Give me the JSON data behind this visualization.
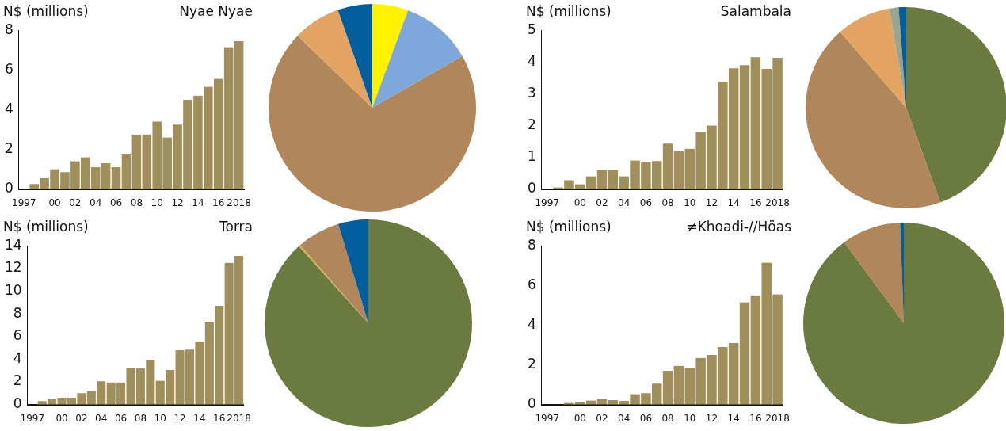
{
  "chart_data": [
    {
      "type": "bar",
      "title": "Nyae Nyae",
      "ylabel": "N$ (millions)",
      "categories": [
        "1997",
        null,
        null,
        "00",
        null,
        "02",
        null,
        "04",
        null,
        "06",
        null,
        "08",
        null,
        "10",
        null,
        "12",
        null,
        "14",
        null,
        "16",
        null,
        "2018"
      ],
      "values": [
        0,
        0.25,
        0.55,
        1.0,
        0.85,
        1.4,
        1.6,
        1.1,
        1.3,
        1.1,
        1.75,
        2.75,
        2.75,
        3.4,
        2.6,
        3.25,
        4.5,
        4.7,
        5.15,
        5.55,
        7.15,
        7.45
      ],
      "color": "#a08f5a",
      "ylim": [
        0,
        8
      ],
      "yticks": [
        0,
        2,
        4,
        6,
        8
      ]
    },
    {
      "type": "pie",
      "categories": [
        null,
        null,
        null,
        null,
        null
      ],
      "values": [
        5.6,
        11.1,
        70.5,
        7.4,
        5.4
      ],
      "colors": [
        "#fff200",
        "#7ea7db",
        "#b0865a",
        "#e3a463",
        "#035c9b"
      ]
    },
    {
      "type": "bar",
      "title": "Salambala",
      "ylabel": "N$ (millions)",
      "categories": [
        "1997",
        null,
        null,
        "00",
        null,
        "02",
        null,
        "04",
        null,
        "06",
        null,
        "08",
        null,
        "10",
        null,
        "12",
        null,
        "14",
        null,
        "16",
        null,
        "2018"
      ],
      "values": [
        0,
        0.05,
        0.28,
        0.15,
        0.4,
        0.6,
        0.6,
        0.4,
        0.9,
        0.85,
        0.88,
        1.43,
        1.2,
        1.27,
        1.8,
        2.0,
        3.37,
        3.8,
        3.9,
        4.15,
        3.78,
        4.13
      ],
      "color": "#a08f5a",
      "ylim": [
        0,
        5
      ],
      "yticks": [
        0,
        1,
        2,
        3,
        4,
        5
      ]
    },
    {
      "type": "pie",
      "categories": [
        null,
        null,
        null,
        null,
        null
      ],
      "values": [
        44.5,
        44.1,
        8.7,
        1.5,
        1.2
      ],
      "colors": [
        "#6b7a3e",
        "#b0865a",
        "#e3a463",
        "#9aa58f",
        "#035c9b"
      ]
    },
    {
      "type": "bar",
      "title": "Torra",
      "ylabel": "N$ (millions)",
      "categories": [
        "1997",
        null,
        null,
        "00",
        null,
        "02",
        null,
        "04",
        null,
        "06",
        null,
        "08",
        null,
        "10",
        null,
        "12",
        null,
        "14",
        null,
        "16",
        null,
        "2018"
      ],
      "values": [
        0,
        0.3,
        0.5,
        0.6,
        0.6,
        1.0,
        1.2,
        2.05,
        1.95,
        1.95,
        3.25,
        3.2,
        3.95,
        2.1,
        3.05,
        4.8,
        4.85,
        5.5,
        7.3,
        8.7,
        12.5,
        13.1
      ],
      "color": "#a08f5a",
      "ylim": [
        0,
        14
      ],
      "yticks": [
        0,
        2,
        4,
        6,
        8,
        10,
        12,
        14
      ]
    },
    {
      "type": "pie",
      "categories": [
        null,
        null,
        null,
        null
      ],
      "values": [
        88.3,
        0.3,
        6.7,
        4.7
      ],
      "colors": [
        "#6b7a3e",
        "#c9b24a",
        "#b0865a",
        "#035c9b"
      ]
    },
    {
      "type": "bar",
      "title": "≠Khoadi-//Höas",
      "ylabel": "N$ (millions)",
      "categories": [
        "1997",
        null,
        null,
        "00",
        null,
        "02",
        null,
        "04",
        null,
        "06",
        null,
        "08",
        null,
        "10",
        null,
        "12",
        null,
        "14",
        null,
        "16",
        null,
        "2018"
      ],
      "values": [
        0,
        0,
        0.08,
        0.12,
        0.2,
        0.27,
        0.22,
        0.18,
        0.52,
        0.57,
        1.05,
        1.7,
        1.95,
        1.85,
        2.35,
        2.5,
        2.9,
        3.1,
        5.15,
        5.5,
        7.15,
        5.55
      ],
      "color": "#a08f5a",
      "ylim": [
        0,
        8
      ],
      "yticks": [
        0,
        2,
        4,
        6,
        8
      ]
    },
    {
      "type": "pie",
      "categories": [
        null,
        null,
        null
      ],
      "values": [
        89.9,
        9.5,
        0.6
      ],
      "colors": [
        "#6b7a3e",
        "#b0865a",
        "#035c9b"
      ]
    }
  ]
}
